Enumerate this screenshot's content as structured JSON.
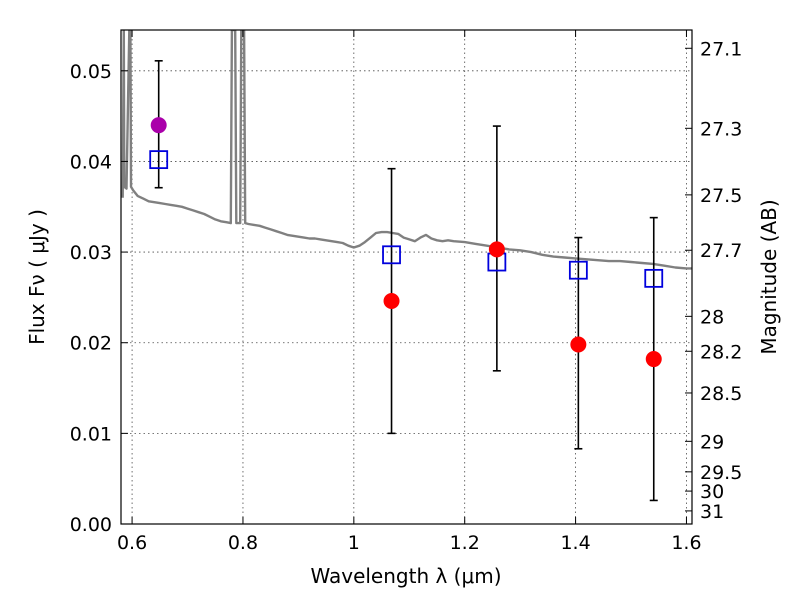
{
  "chart_data": {
    "type": "scatter",
    "xlabel": "Wavelength  λ (μm)",
    "ylabel": "Flux  Fν  ( μJy )",
    "ylabel_right": "Magnitude (AB)",
    "xlim": [
      0.58,
      1.61
    ],
    "ylim": [
      0.0,
      0.0545
    ],
    "grid": true,
    "x_ticks": [
      0.6,
      0.8,
      1.0,
      1.2,
      1.4,
      1.6
    ],
    "x_tick_labels": [
      "0.6",
      "0.8",
      "1",
      "1.2",
      "1.4",
      "1.6"
    ],
    "y_ticks": [
      0.0,
      0.01,
      0.02,
      0.03,
      0.04,
      0.05
    ],
    "y_tick_labels": [
      "0.00",
      "0.01",
      "0.02",
      "0.03",
      "0.04",
      "0.05"
    ],
    "right_ticks": [
      27.1,
      27.3,
      27.5,
      27.7,
      28,
      28.2,
      28.5,
      29,
      29.5,
      30,
      31
    ],
    "right_tick_labels": [
      "27.1",
      "27.3",
      "27.5",
      "27.7",
      "28",
      "28.2",
      "28.5",
      "29",
      "29.5",
      "30",
      "31"
    ],
    "colors": {
      "observed": "#ff0000",
      "observed_first": "#aa00aa",
      "model_box": "#0000dd",
      "sed": "#808080",
      "errorbar": "#000000"
    },
    "series": [
      {
        "kind": "observed",
        "points": [
          {
            "x": 0.648,
            "y": 0.044,
            "yerr_low": 0.0371,
            "yerr_high": 0.0511
          },
          {
            "x": 1.068,
            "y": 0.0246,
            "yerr_low": 0.01,
            "yerr_high": 0.0392
          },
          {
            "x": 1.258,
            "y": 0.0303,
            "yerr_low": 0.0169,
            "yerr_high": 0.0439
          },
          {
            "x": 1.405,
            "y": 0.0198,
            "yerr_low": 0.0083,
            "yerr_high": 0.0316
          },
          {
            "x": 1.541,
            "y": 0.0182,
            "yerr_low": 0.0026,
            "yerr_high": 0.0338
          }
        ]
      },
      {
        "kind": "model",
        "points": [
          {
            "x": 0.648,
            "y": 0.0402
          },
          {
            "x": 1.068,
            "y": 0.0297
          },
          {
            "x": 1.258,
            "y": 0.0289
          },
          {
            "x": 1.405,
            "y": 0.028
          },
          {
            "x": 1.541,
            "y": 0.0271
          }
        ]
      },
      {
        "kind": "sed",
        "line": [
          [
            0.583,
            0.036
          ],
          [
            0.585,
            0.0545
          ],
          [
            0.586,
            0.0372
          ],
          [
            0.59,
            0.037
          ],
          [
            0.595,
            0.0545
          ],
          [
            0.597,
            0.0545
          ],
          [
            0.598,
            0.0372
          ],
          [
            0.602,
            0.0368
          ],
          [
            0.61,
            0.0362
          ],
          [
            0.62,
            0.0359
          ],
          [
            0.63,
            0.0356
          ],
          [
            0.64,
            0.0355
          ],
          [
            0.65,
            0.0354
          ],
          [
            0.66,
            0.0353
          ],
          [
            0.67,
            0.0352
          ],
          [
            0.68,
            0.0351
          ],
          [
            0.69,
            0.035
          ],
          [
            0.7,
            0.0348
          ],
          [
            0.71,
            0.0346
          ],
          [
            0.72,
            0.0344
          ],
          [
            0.73,
            0.0342
          ],
          [
            0.74,
            0.0339
          ],
          [
            0.75,
            0.0336
          ],
          [
            0.76,
            0.0334
          ],
          [
            0.77,
            0.0333
          ],
          [
            0.778,
            0.0332
          ],
          [
            0.78,
            0.0545
          ],
          [
            0.786,
            0.0545
          ],
          [
            0.788,
            0.0332
          ],
          [
            0.795,
            0.0332
          ],
          [
            0.797,
            0.0545
          ],
          [
            0.802,
            0.0545
          ],
          [
            0.804,
            0.0332
          ],
          [
            0.81,
            0.0331
          ],
          [
            0.82,
            0.033
          ],
          [
            0.83,
            0.0329
          ],
          [
            0.84,
            0.0327
          ],
          [
            0.85,
            0.0325
          ],
          [
            0.86,
            0.0323
          ],
          [
            0.87,
            0.0321
          ],
          [
            0.88,
            0.0319
          ],
          [
            0.89,
            0.0318
          ],
          [
            0.9,
            0.0317
          ],
          [
            0.91,
            0.0316
          ],
          [
            0.92,
            0.0315
          ],
          [
            0.93,
            0.0315
          ],
          [
            0.94,
            0.0314
          ],
          [
            0.95,
            0.0313
          ],
          [
            0.96,
            0.0312
          ],
          [
            0.97,
            0.0311
          ],
          [
            0.98,
            0.031
          ],
          [
            0.99,
            0.0307
          ],
          [
            1.0,
            0.0305
          ],
          [
            1.01,
            0.0307
          ],
          [
            1.02,
            0.0311
          ],
          [
            1.03,
            0.0316
          ],
          [
            1.04,
            0.0321
          ],
          [
            1.05,
            0.0322
          ],
          [
            1.06,
            0.0322
          ],
          [
            1.07,
            0.0321
          ],
          [
            1.08,
            0.032
          ],
          [
            1.09,
            0.0316
          ],
          [
            1.1,
            0.0314
          ],
          [
            1.11,
            0.0312
          ],
          [
            1.12,
            0.0316
          ],
          [
            1.13,
            0.0319
          ],
          [
            1.14,
            0.0315
          ],
          [
            1.15,
            0.0313
          ],
          [
            1.16,
            0.0312
          ],
          [
            1.17,
            0.0313
          ],
          [
            1.18,
            0.0312
          ],
          [
            1.2,
            0.0311
          ],
          [
            1.22,
            0.0309
          ],
          [
            1.24,
            0.0307
          ],
          [
            1.26,
            0.0305
          ],
          [
            1.28,
            0.0303
          ],
          [
            1.3,
            0.0302
          ],
          [
            1.32,
            0.03
          ],
          [
            1.34,
            0.0297
          ],
          [
            1.36,
            0.0295
          ],
          [
            1.38,
            0.0294
          ],
          [
            1.4,
            0.0293
          ],
          [
            1.42,
            0.0292
          ],
          [
            1.44,
            0.0291
          ],
          [
            1.46,
            0.029
          ],
          [
            1.48,
            0.029
          ],
          [
            1.5,
            0.0289
          ],
          [
            1.52,
            0.0288
          ],
          [
            1.54,
            0.0287
          ],
          [
            1.56,
            0.0285
          ],
          [
            1.58,
            0.0283
          ],
          [
            1.6,
            0.0282
          ],
          [
            1.61,
            0.0282
          ]
        ]
      }
    ]
  }
}
